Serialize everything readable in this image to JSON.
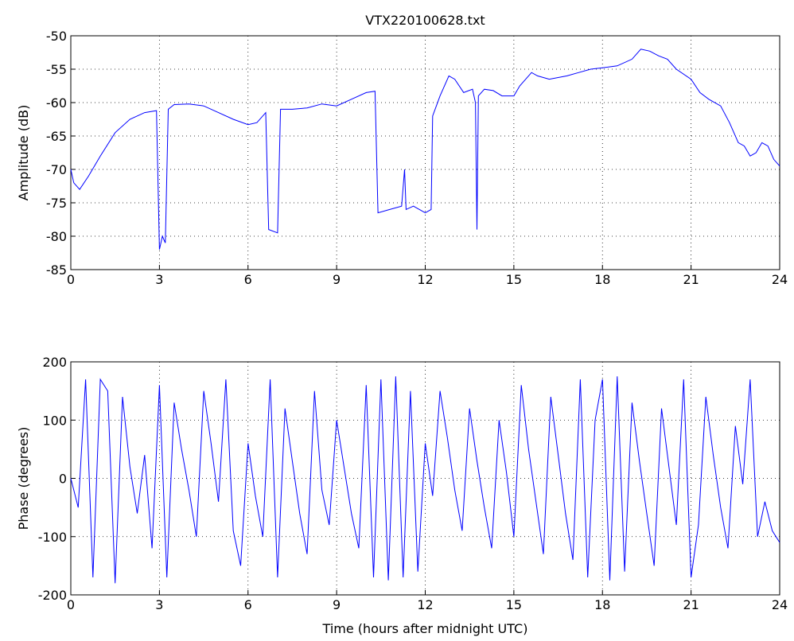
{
  "chart_data": [
    {
      "type": "line",
      "title": "VTX220100628.txt",
      "y_label": "Amplitude (dB)",
      "grid": true,
      "x": [
        0,
        0.1,
        0.3,
        0.6,
        1,
        1.5,
        2,
        2.5,
        2.9,
        3.0,
        3.1,
        3.2,
        3.3,
        3.5,
        4,
        4.5,
        5,
        5.5,
        6,
        6.3,
        6.6,
        6.7,
        7.0,
        7.1,
        7.5,
        8,
        8.5,
        9,
        9.5,
        10,
        10.3,
        10.4,
        10.8,
        11.2,
        11.3,
        11.35,
        11.6,
        12,
        12.2,
        12.25,
        12.5,
        12.8,
        13,
        13.3,
        13.6,
        13.7,
        13.75,
        13.8,
        14,
        14.3,
        14.6,
        15,
        15.2,
        15.6,
        15.8,
        16.2,
        16.8,
        17.2,
        17.6,
        18,
        18.5,
        19,
        19.3,
        19.6,
        19.9,
        20.2,
        20.5,
        21,
        21.3,
        21.6,
        22,
        22.3,
        22.6,
        22.8,
        23,
        23.2,
        23.4,
        23.6,
        23.8,
        24
      ],
      "series": [
        {
          "color": "#0000ff",
          "values": [
            -70,
            -72,
            -73,
            -71,
            -68,
            -64.5,
            -62.5,
            -61.5,
            -61.2,
            -82,
            -80,
            -81,
            -61,
            -60.3,
            -60.2,
            -60.5,
            -61.5,
            -62.5,
            -63.3,
            -63,
            -61.5,
            -79,
            -79.5,
            -61,
            -61,
            -60.8,
            -60.2,
            -60.5,
            -59.5,
            -58.5,
            -58.3,
            -76.5,
            -76,
            -75.5,
            -70,
            -76,
            -75.5,
            -76.5,
            -76,
            -62,
            -59,
            -56,
            -56.5,
            -58.5,
            -58,
            -60,
            -79,
            -59,
            -58,
            -58.2,
            -59,
            -59,
            -57.5,
            -55.5,
            -56,
            -56.5,
            -56,
            -55.5,
            -55,
            -54.8,
            -54.5,
            -53.5,
            -52,
            -52.3,
            -53,
            -53.5,
            -55,
            -56.5,
            -58.5,
            -59.5,
            -60.5,
            -63,
            -66,
            -66.5,
            -68,
            -67.5,
            -66,
            -66.5,
            -68.5,
            -69.5
          ]
        }
      ],
      "xlim": [
        0,
        24
      ],
      "xticks": [
        0,
        3,
        6,
        9,
        12,
        15,
        18,
        21,
        24
      ],
      "ylim": [
        -85,
        -50
      ],
      "yticks": [
        -85,
        -80,
        -75,
        -70,
        -65,
        -60,
        -55,
        -50
      ]
    },
    {
      "type": "line",
      "x_label": "Time (hours after midnight UTC)",
      "y_label": "Phase (degrees)",
      "grid": true,
      "x": [
        0,
        0.25,
        0.5,
        0.75,
        1,
        1.25,
        1.5,
        1.75,
        2,
        2.25,
        2.5,
        2.75,
        3,
        3.25,
        3.5,
        3.75,
        4,
        4.25,
        4.5,
        4.75,
        5,
        5.25,
        5.5,
        5.75,
        6,
        6.25,
        6.5,
        6.75,
        7,
        7.25,
        7.5,
        7.75,
        8,
        8.25,
        8.5,
        8.75,
        9,
        9.25,
        9.5,
        9.75,
        10,
        10.25,
        10.5,
        10.75,
        11,
        11.25,
        11.5,
        11.75,
        12,
        12.25,
        12.5,
        12.75,
        13,
        13.25,
        13.5,
        13.75,
        14,
        14.25,
        14.5,
        14.75,
        15,
        15.25,
        15.5,
        15.75,
        16,
        16.25,
        16.5,
        16.75,
        17,
        17.25,
        17.5,
        17.75,
        18,
        18.25,
        18.5,
        18.75,
        19,
        19.25,
        19.5,
        19.75,
        20,
        20.25,
        20.5,
        20.75,
        21,
        21.25,
        21.5,
        21.75,
        22,
        22.25,
        22.5,
        22.75,
        23,
        23.25,
        23.5,
        23.75,
        24
      ],
      "series": [
        {
          "color": "#0000ff",
          "values": [
            0,
            -50,
            170,
            -170,
            170,
            150,
            -180,
            140,
            20,
            -60,
            40,
            -120,
            160,
            -170,
            130,
            50,
            -20,
            -100,
            150,
            60,
            -40,
            170,
            -90,
            -150,
            60,
            -30,
            -100,
            170,
            -170,
            120,
            30,
            -60,
            -130,
            150,
            -20,
            -80,
            100,
            20,
            -60,
            -120,
            160,
            -170,
            170,
            -175,
            175,
            -170,
            150,
            -160,
            60,
            -30,
            150,
            70,
            -20,
            -90,
            120,
            30,
            -50,
            -120,
            100,
            10,
            -100,
            160,
            50,
            -40,
            -130,
            140,
            40,
            -60,
            -140,
            170,
            -170,
            100,
            170,
            -175,
            175,
            -160,
            130,
            30,
            -60,
            -150,
            120,
            20,
            -80,
            170,
            -170,
            -80,
            140,
            40,
            -50,
            -120,
            90,
            -10,
            170,
            -100,
            -40,
            -90,
            -110
          ]
        }
      ],
      "xlim": [
        0,
        24
      ],
      "xticks": [
        0,
        3,
        6,
        9,
        12,
        15,
        18,
        21,
        24
      ],
      "ylim": [
        -200,
        200
      ],
      "yticks": [
        -200,
        -100,
        0,
        100,
        200
      ]
    }
  ]
}
